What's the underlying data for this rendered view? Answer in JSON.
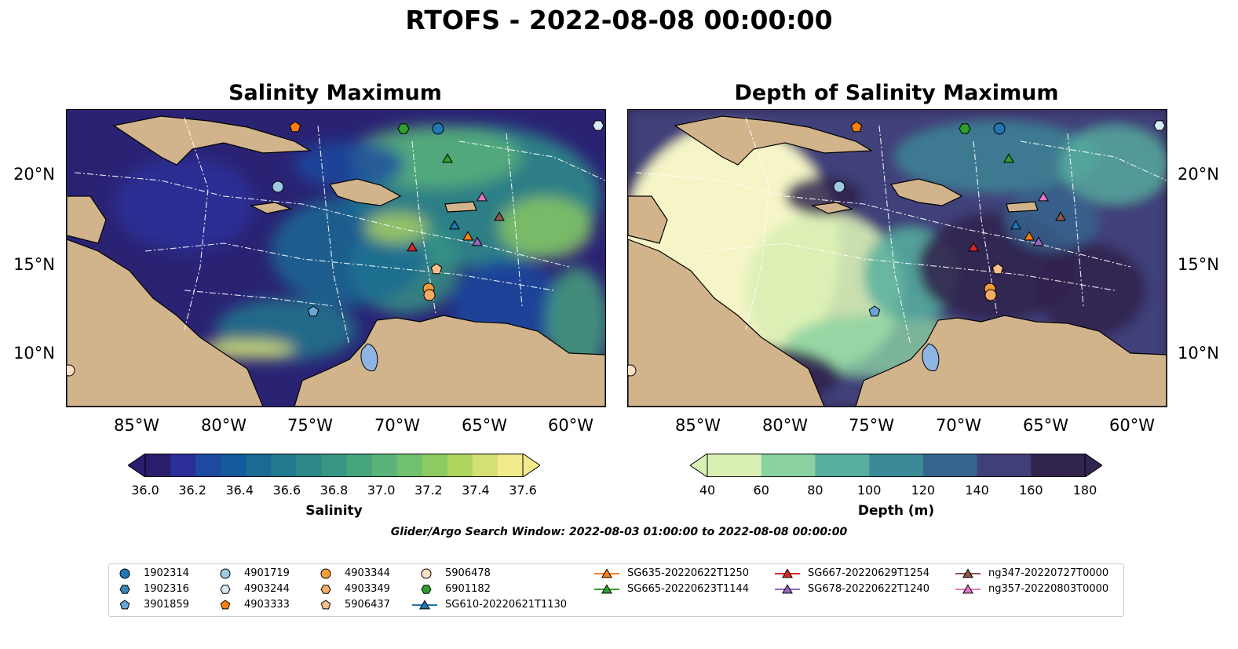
{
  "figure": {
    "title": "RTOFS - 2022-08-08 00:00:00",
    "search_window": "Glider/Argo Search Window: 2022-08-03 01:00:00 to 2022-08-08 00:00:00"
  },
  "panels": [
    {
      "title": "Salinity Maximum",
      "colorbar": {
        "label": "Salinity",
        "ticks": [
          "36.0",
          "36.2",
          "36.4",
          "36.6",
          "36.8",
          "37.0",
          "37.2",
          "37.4",
          "37.6"
        ],
        "colors": [
          "#2a1d6b",
          "#2c2e9a",
          "#1c4aa0",
          "#13599b",
          "#1a6a94",
          "#237a8d",
          "#2d8888",
          "#389784",
          "#47a57d",
          "#5ab47a",
          "#70c06e",
          "#8ccb62",
          "#afd55e",
          "#d4df74",
          "#f2eb8e"
        ]
      }
    },
    {
      "title": "Depth of Salinity Maximum",
      "colorbar": {
        "label": "Depth (m)",
        "ticks": [
          "40",
          "60",
          "80",
          "100",
          "120",
          "140",
          "160",
          "180"
        ],
        "colors": [
          "#d9efb4",
          "#8bd2a1",
          "#57b09f",
          "#3c8a97",
          "#366690",
          "#403f7a",
          "#31254f"
        ]
      }
    }
  ],
  "axes": {
    "lon_labels": [
      "85°W",
      "80°W",
      "75°W",
      "70°W",
      "65°W",
      "60°W"
    ],
    "lat_labels": [
      "20°N",
      "15°N",
      "10°N"
    ]
  },
  "colors": {
    "land": "#d2b48c",
    "lake": "#8eb4e3"
  },
  "legend": {
    "argo": [
      {
        "label": "1902314",
        "shape": "circle",
        "color": "#1f77b4"
      },
      {
        "label": "1902316",
        "shape": "hexagon",
        "color": "#3a83b8"
      },
      {
        "label": "3901859",
        "shape": "pentagon",
        "color": "#6aa5d8"
      },
      {
        "label": "4901719",
        "shape": "circle",
        "color": "#9ecae1"
      },
      {
        "label": "4903244",
        "shape": "hexagon",
        "color": "#d6e9f5"
      },
      {
        "label": "4903333",
        "shape": "pentagon",
        "color": "#ff7f0e"
      },
      {
        "label": "4903344",
        "shape": "circle",
        "color": "#f69d3a"
      },
      {
        "label": "4903349",
        "shape": "hexagon",
        "color": "#f7ab62"
      },
      {
        "label": "5906437",
        "shape": "pentagon",
        "color": "#fbc08a"
      },
      {
        "label": "5906478",
        "shape": "circle",
        "color": "#fde0c4"
      },
      {
        "label": "6901182",
        "shape": "hexagon",
        "color": "#2ca02c"
      }
    ],
    "gliders": [
      {
        "label": "SG610-20220621T1130",
        "color": "#1f77b4"
      },
      {
        "label": "SG635-20220622T1250",
        "color": "#ff7f0e"
      },
      {
        "label": "SG665-20220623T1144",
        "color": "#2ca02c"
      },
      {
        "label": "SG667-20220629T1254",
        "color": "#d62728"
      },
      {
        "label": "SG678-20220622T1240",
        "color": "#9467bd"
      },
      {
        "label": "ng347-20220727T0000",
        "color": "#8c564b"
      },
      {
        "label": "ng357-20220803T0000",
        "color": "#e377c2"
      }
    ]
  }
}
